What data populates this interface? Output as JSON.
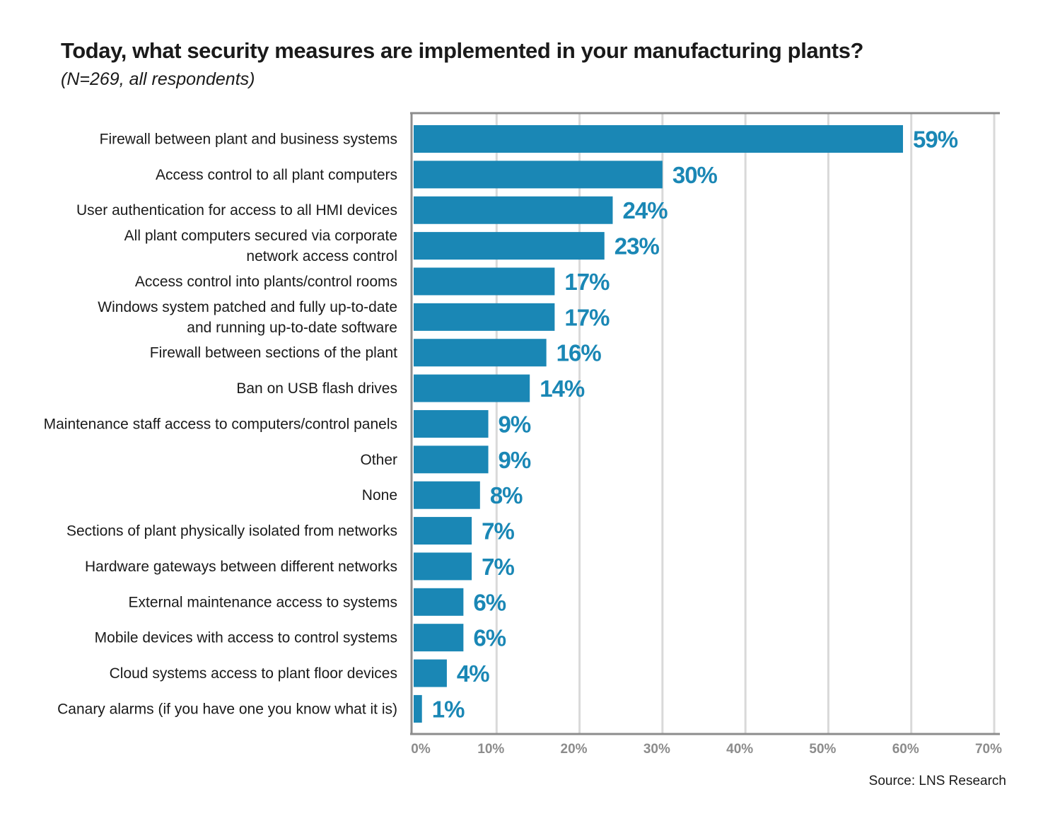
{
  "page": {
    "title": "Today, what security measures are implemented in your manufacturing plants?",
    "subtitle": "(N=269, all respondents)",
    "source": "Source: LNS Research"
  },
  "colors": {
    "bar": "#1a87b5",
    "value_label": "#1a87b5",
    "axis": "#8c8c8c",
    "grid": "#d9d9d9",
    "tick_label": "#8c8c8c",
    "category_label": "#1a1a1a"
  },
  "chart_data": {
    "type": "bar",
    "orientation": "horizontal",
    "title": "Today, what security measures are implemented in your manufacturing plants?",
    "subtitle": "(N=269, all respondents)",
    "categories": [
      "Firewall between plant and business systems",
      "Access control to all plant computers",
      "User authentication for access to all HMI devices",
      "All plant computers secured via corporate\nnetwork access control",
      "Access control into plants/control rooms",
      "Windows system patched and fully up-to-date\nand running up-to-date software",
      "Firewall between sections of the plant",
      "Ban on USB flash drives",
      "Maintenance staff access to computers/control panels",
      "Other",
      "None",
      "Sections of plant physically isolated from networks",
      "Hardware gateways between different networks",
      "External maintenance access to systems",
      "Mobile devices with access to control systems",
      "Cloud systems access to plant floor devices",
      "Canary alarms (if you have one you know what it is)"
    ],
    "values": [
      59,
      30,
      24,
      23,
      17,
      17,
      16,
      14,
      9,
      9,
      8,
      7,
      7,
      6,
      6,
      4,
      1
    ],
    "value_labels": [
      "59%",
      "30%",
      "24%",
      "23%",
      "17%",
      "17%",
      "16%",
      "14%",
      "9%",
      "9%",
      "8%",
      "7%",
      "7%",
      "6%",
      "6%",
      "4%",
      "1%"
    ],
    "xlim": [
      0,
      70
    ],
    "xticks": [
      0,
      10,
      20,
      30,
      40,
      50,
      60,
      70
    ],
    "xtick_labels": [
      "0%",
      "10%",
      "20%",
      "30%",
      "40%",
      "50%",
      "60%",
      "70%"
    ],
    "xlabel": "",
    "ylabel": "",
    "grid": true,
    "legend": "none"
  }
}
